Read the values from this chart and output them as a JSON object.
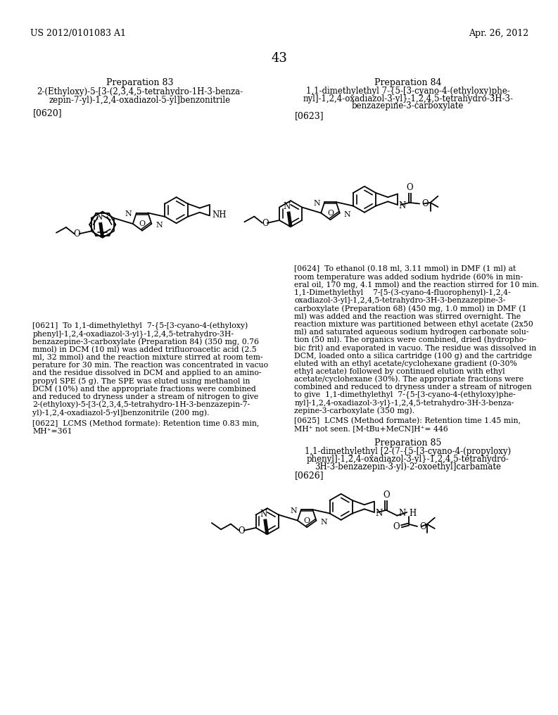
{
  "page_header_left": "US 2012/0101083 A1",
  "page_header_right": "Apr. 26, 2012",
  "page_number": "43",
  "bg_color": "#ffffff",
  "text_color": "#000000",
  "prep83_title": "Preparation 83",
  "prep83_line1": "2-(Ethyloxy)-5-[3-(2,3,4,5-tetrahydro-1H-3-benza-",
  "prep83_line2": "zepin-7-yl)-1,2,4-oxadiazol-5-yl]benzonitrile",
  "prep83_tag": "[0620]",
  "prep84_title": "Preparation 84",
  "prep84_line1": "1,1-dimethylethyl 7-{5-[3-cyano-4-(ethyloxy)phe-",
  "prep84_line2": "nyl]-1,2,4-oxadiazol-3-yl}-1,2,4,5-tetrahydro-3H-3-",
  "prep84_line3": "benzazepine-3-carboxylate",
  "prep84_tag": "[0623]",
  "para0621_lines": [
    "[0621]  To 1,1-dimethylethyl  7-{5-[3-cyano-4-(ethyloxy)",
    "phenyl]-1,2,4-oxadiazol-3-yl}-1,2,4,5-tetrahydro-3H-",
    "benzazepine-3-carboxylate (Preparation 84) (350 mg, 0.76",
    "mmol) in DCM (10 ml) was added trifluoroacetic acid (2.5",
    "ml, 32 mmol) and the reaction mixture stirred at room tem-",
    "perature for 30 min. The reaction was concentrated in vacuo",
    "and the residue dissolved in DCM and applied to an amino-",
    "propyl SPE (5 g). The SPE was eluted using methanol in",
    "DCM (10%) and the appropriate fractions were combined",
    "and reduced to dryness under a stream of nitrogen to give",
    "2-(ethyloxy)-5-[3-(2,3,4,5-tetrahydro-1H-3-benzazepin-7-",
    "yl)-1,2,4-oxadiazol-5-yl]benzonitrile (200 mg)."
  ],
  "para0622_lines": [
    "[0622]  LCMS (Method formate): Retention time 0.83 min,",
    "MH⁺=361"
  ],
  "para0624_lines": [
    "[0624]  To ethanol (0.18 ml, 3.11 mmol) in DMF (1 ml) at",
    "room temperature was added sodium hydride (60% in min-",
    "eral oil, 170 mg, 4.1 mmol) and the reaction stirred for 10 min.",
    "1,1-Dimethylethyl    7-[5-(3-cyano-4-fluorophenyl)-1,2,4-",
    "oxadiazol-3-yl]-1,2,4,5-tetrahydro-3H-3-benzazepine-3-",
    "carboxylate (Preparation 68) (450 mg, 1.0 mmol) in DMF (1",
    "ml) was added and the reaction was stirred overnight. The",
    "reaction mixture was partitioned between ethyl acetate (2x50",
    "ml) and saturated aqueous sodium hydrogen carbonate solu-",
    "tion (50 ml). The organics were combined, dried (hydropho-",
    "bic frit) and evaporated in vacuo. The residue was dissolved in",
    "DCM, loaded onto a silica cartridge (100 g) and the cartridge",
    "eluted with an ethyl acetate/cyclohexane gradient (0-30%",
    "ethyl acetate) followed by continued elution with ethyl",
    "acetate/cyclohexane (30%). The appropriate fractions were",
    "combined and reduced to dryness under a stream of nitrogen",
    "to give  1,1-dimethylethyl  7-{5-[3-cyano-4-(ethyloxy)phe-",
    "nyl]-1,2,4-oxadiazol-3-yl}-1,2,4,5-tetrahydro-3H-3-benza-",
    "zepine-3-carboxylate (350 mg)."
  ],
  "para0625_lines": [
    "[0625]  LCMS (Method formate): Retention time 1.45 min,",
    "MH⁺ not seen. [M-tBu+MeCN]H⁺= 446"
  ],
  "prep85_title": "Preparation 85",
  "prep85_line1": "1,1-dimethylethyl [2-(7-{5-[3-cyano-4-(propyloxy)",
  "prep85_line2": "phenyl]-1,2,4-oxadiazol-3-yl}-1,2,4,5-tetrahydro-",
  "prep85_line3": "3H-3-benzazepin-3-yl)-2-oxoethyl]carbamate",
  "prep85_tag": "[0626]",
  "lw": 1.3,
  "ring_r": 22,
  "font_header": 9,
  "font_body": 8,
  "font_label": 7.5
}
